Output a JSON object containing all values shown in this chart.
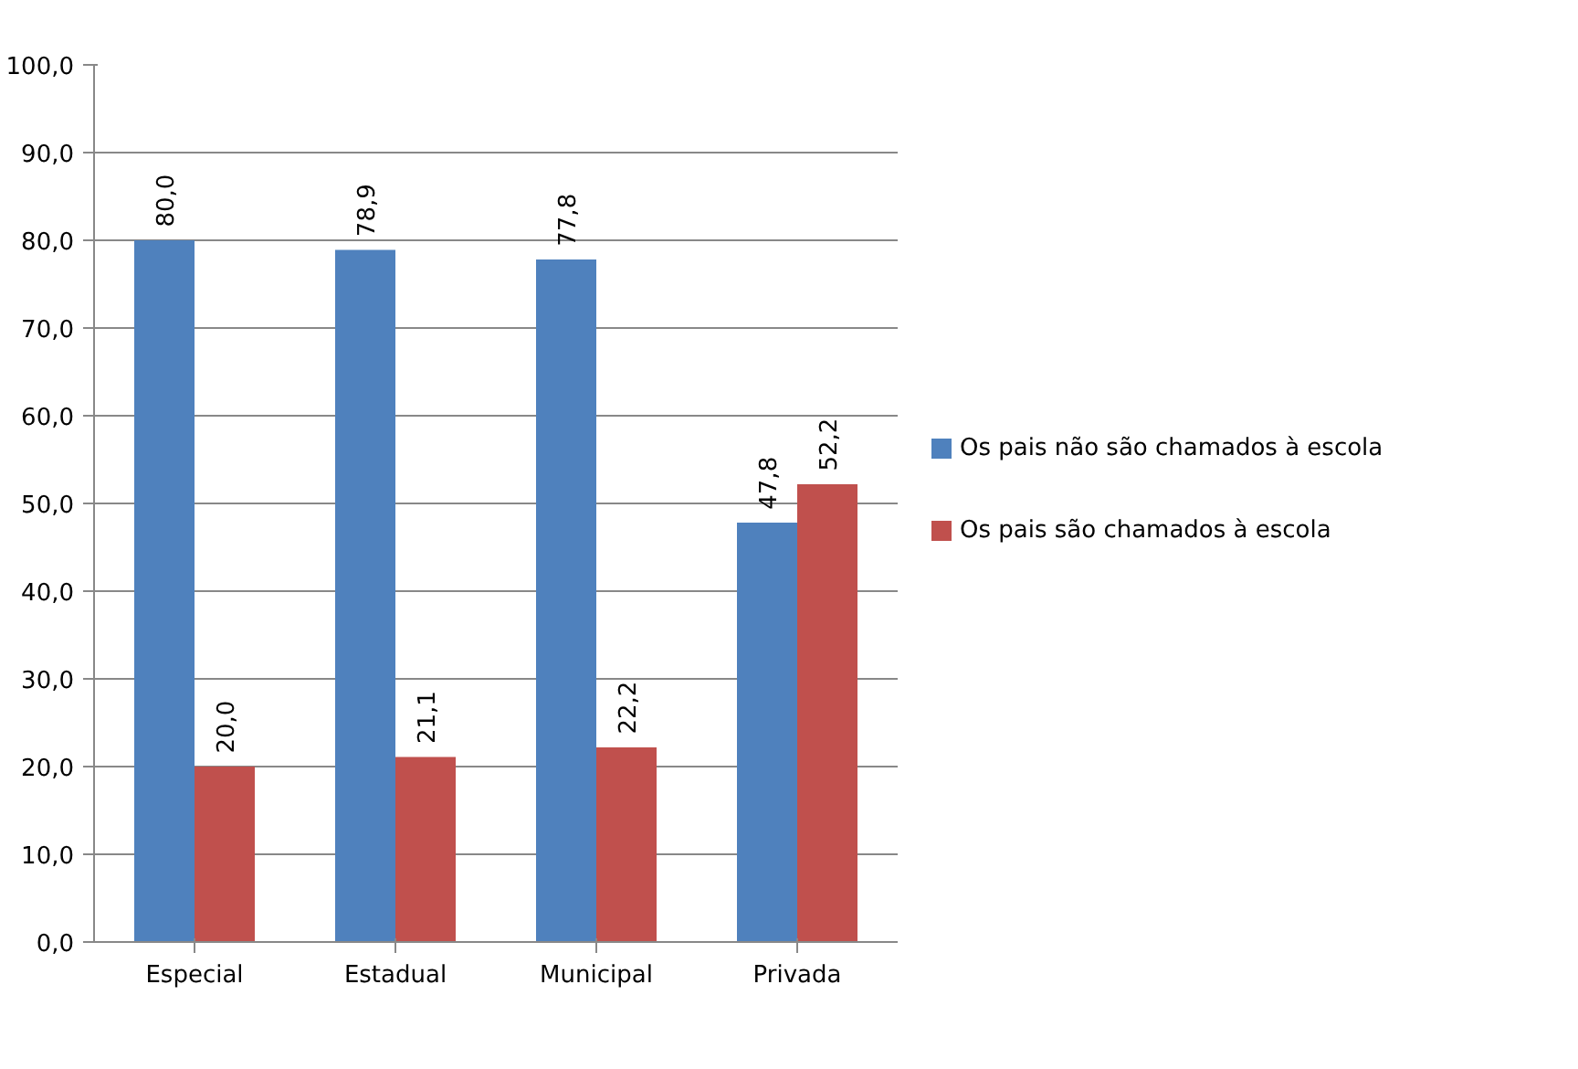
{
  "chart_data": {
    "type": "bar",
    "categories": [
      "Especial",
      "Estadual",
      "Municipal",
      "Privada"
    ],
    "series": [
      {
        "name": "Os pais não são chamados à escola",
        "color": "#4f81bd",
        "values": [
          80.0,
          78.9,
          77.8,
          47.8
        ],
        "value_labels": [
          "80,0",
          "78,9",
          "77,8",
          "47,8"
        ]
      },
      {
        "name": "Os pais são chamados à escola",
        "color": "#c0504d",
        "values": [
          20.0,
          21.1,
          22.2,
          52.2
        ],
        "value_labels": [
          "20,0",
          "21,1",
          "22,2",
          "52,2"
        ]
      }
    ],
    "ylim": [
      0,
      100
    ],
    "yticks": [
      {
        "value": 0,
        "label": "0,0"
      },
      {
        "value": 10,
        "label": "10,0"
      },
      {
        "value": 20,
        "label": "20,0"
      },
      {
        "value": 30,
        "label": "30,0"
      },
      {
        "value": 40,
        "label": "40,0"
      },
      {
        "value": 50,
        "label": "50,0"
      },
      {
        "value": 60,
        "label": "60,0"
      },
      {
        "value": 70,
        "label": "70,0"
      },
      {
        "value": 80,
        "label": "80,0"
      },
      {
        "value": 90,
        "label": "90,0"
      },
      {
        "value": 100,
        "label": "100,0"
      }
    ],
    "grid": "y",
    "legend": "right"
  }
}
